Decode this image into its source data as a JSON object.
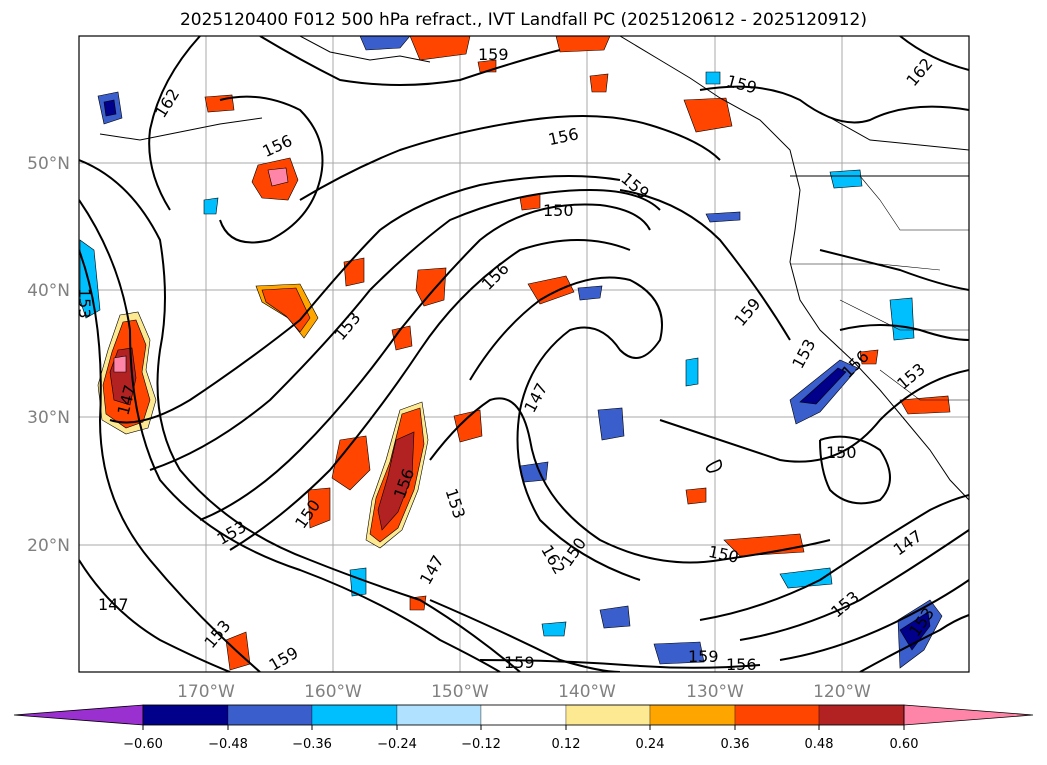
{
  "title": "2025120400 F012 500 hPa refract., IVT Landfall PC (2025120612 - 2025120912)",
  "lat_labels": [
    "50°N",
    "40°N",
    "30°N",
    "20°N"
  ],
  "lon_labels": [
    "170°W",
    "160°W",
    "150°W",
    "140°W",
    "130°W",
    "120°W"
  ],
  "contour_labels": [
    "159",
    "162",
    "159",
    "162",
    "156",
    "156",
    "159",
    "150",
    "156",
    "153",
    "159",
    "153",
    "153",
    "156",
    "153",
    "147",
    "147",
    "150",
    "156",
    "150",
    "153",
    "153",
    "150",
    "147",
    "162",
    "150",
    "147",
    "147",
    "153",
    "159",
    "159",
    "159",
    "156",
    "153"
  ],
  "colorbar": {
    "ticks": [
      "−0.60",
      "−0.48",
      "−0.36",
      "−0.24",
      "−0.12",
      "0.12",
      "0.24",
      "0.36",
      "0.48",
      "0.60"
    ],
    "colors": [
      "#9b30d0",
      "#00008b",
      "#3a5fcd",
      "#00bfff",
      "#b0e2ff",
      "#ffffff",
      "#fde992",
      "#ffa500",
      "#ff4500",
      "#b22222",
      "#ff85a8"
    ]
  }
}
